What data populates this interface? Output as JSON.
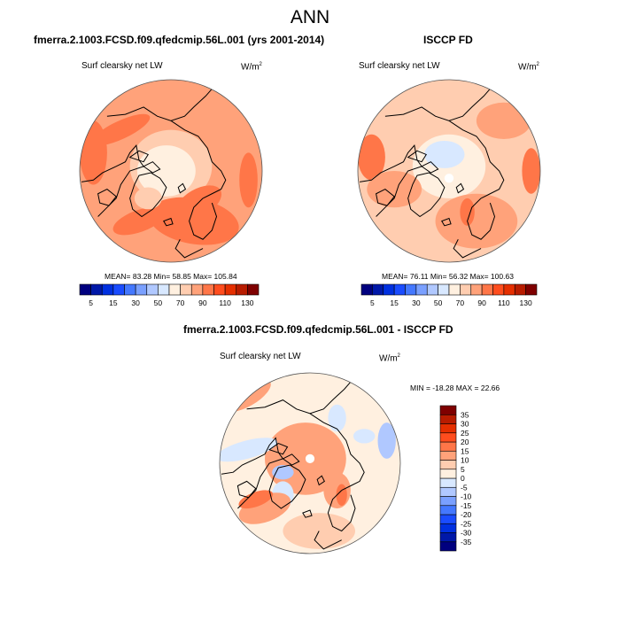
{
  "title": "ANN",
  "panels": [
    {
      "id": "model",
      "title": "fmerra.2.1003.FCSD.f09.qfedcmip.56L.001 (yrs 2001-2014)",
      "variable": "Surf clearsky net LW",
      "units_base": "W/m",
      "units_sup": "2",
      "stats_text": "MEAN=  83.28  Min=  58.85  Max= 105.84"
    },
    {
      "id": "obs",
      "title": "ISCCP FD",
      "variable": "Surf clearsky net LW",
      "units_base": "W/m",
      "units_sup": "2",
      "stats_text": "MEAN=  76.11  Min=  56.32  Max= 100.63"
    },
    {
      "id": "diff",
      "title": "fmerra.2.1003.FCSD.f09.qfedcmip.56L.001 - ISCCP FD",
      "variable": "Surf clearsky net LW",
      "units_base": "W/m",
      "units_sup": "2",
      "stats_text": "MIN = -18.28 MAX =  22.66"
    }
  ],
  "chart_data": [
    {
      "type": "heatmap",
      "projection": "north-polar-stereographic",
      "title": "fmerra.2.1003.FCSD.f09.qfedcmip.56L.001 (yrs 2001-2014)",
      "subtitle": "Surf clearsky net LW",
      "units": "W/m^2",
      "stats": {
        "mean": 83.28,
        "min": 58.85,
        "max": 105.84
      },
      "colorbar": {
        "orientation": "horizontal",
        "levels": [
          5,
          10,
          15,
          20,
          30,
          40,
          50,
          60,
          70,
          80,
          90,
          100,
          110,
          120,
          130
        ],
        "tick_labels": [
          "5",
          "15",
          "30",
          "50",
          "70",
          "90",
          "110",
          "130"
        ],
        "colors": [
          "#00007f",
          "#0018a8",
          "#0030e0",
          "#1a4cff",
          "#4478ff",
          "#7aa0ff",
          "#b0c8ff",
          "#d8e8ff",
          "#fff0e0",
          "#ffcdb0",
          "#ffa27a",
          "#ff7648",
          "#ff4d1e",
          "#e52f00",
          "#b81c00",
          "#7f0000"
        ]
      }
    },
    {
      "type": "heatmap",
      "projection": "north-polar-stereographic",
      "title": "ISCCP FD",
      "subtitle": "Surf clearsky net LW",
      "units": "W/m^2",
      "stats": {
        "mean": 76.11,
        "min": 56.32,
        "max": 100.63
      },
      "colorbar": {
        "orientation": "horizontal",
        "levels": [
          5,
          10,
          15,
          20,
          30,
          40,
          50,
          60,
          70,
          80,
          90,
          100,
          110,
          120,
          130
        ],
        "tick_labels": [
          "5",
          "15",
          "30",
          "50",
          "70",
          "90",
          "110",
          "130"
        ],
        "colors": [
          "#00007f",
          "#0018a8",
          "#0030e0",
          "#1a4cff",
          "#4478ff",
          "#7aa0ff",
          "#b0c8ff",
          "#d8e8ff",
          "#fff0e0",
          "#ffcdb0",
          "#ffa27a",
          "#ff7648",
          "#ff4d1e",
          "#e52f00",
          "#b81c00",
          "#7f0000"
        ]
      }
    },
    {
      "type": "heatmap",
      "projection": "north-polar-stereographic",
      "title": "fmerra.2.1003.FCSD.f09.qfedcmip.56L.001 - ISCCP FD",
      "subtitle": "Surf clearsky net LW",
      "units": "W/m^2",
      "stats": {
        "min": -18.28,
        "max": 22.66
      },
      "colorbar": {
        "orientation": "vertical",
        "levels": [
          -35,
          -30,
          -25,
          -20,
          -15,
          -10,
          -5,
          0,
          5,
          10,
          15,
          20,
          25,
          30,
          35
        ],
        "tick_labels": [
          "-35",
          "-30",
          "-25",
          "-20",
          "-15",
          "-10",
          "-5",
          "0",
          "5",
          "10",
          "15",
          "20",
          "25",
          "30",
          "35"
        ],
        "colors": [
          "#00007f",
          "#0018a8",
          "#0030e0",
          "#1a4cff",
          "#4478ff",
          "#7aa0ff",
          "#b0c8ff",
          "#d8e8ff",
          "#fff0e0",
          "#ffcdb0",
          "#ffa27a",
          "#ff7648",
          "#ff4d1e",
          "#e52f00",
          "#b81c00",
          "#7f0000"
        ]
      }
    }
  ]
}
